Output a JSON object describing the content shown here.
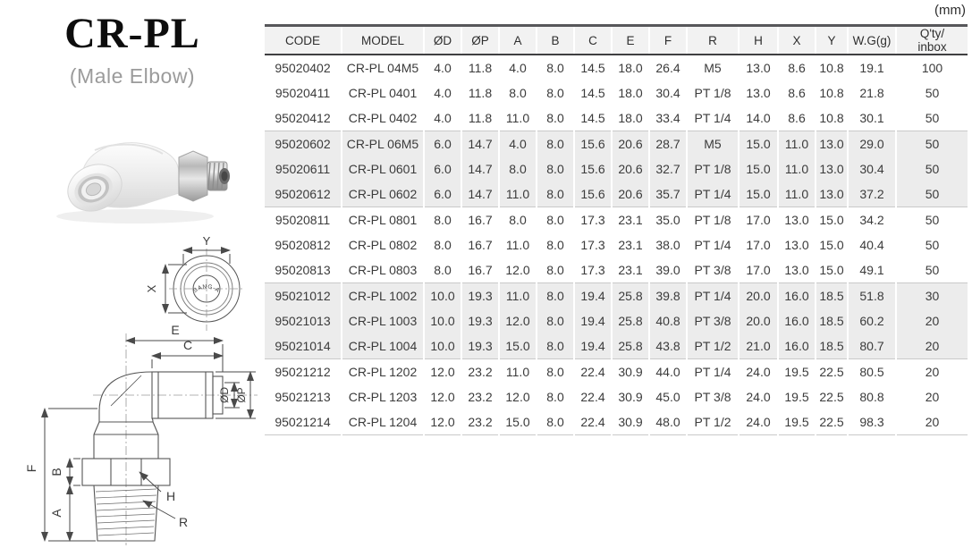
{
  "page": {
    "unit_label": "(mm)"
  },
  "product": {
    "title": "CR-PL",
    "subtitle": "(Male Elbow)"
  },
  "table": {
    "columns": [
      "CODE",
      "MODEL",
      "ØD",
      "ØP",
      "A",
      "B",
      "C",
      "E",
      "F",
      "R",
      "H",
      "X",
      "Y",
      "W.G(g)",
      "Q'ty/\ninbox"
    ],
    "rows": [
      [
        "95020402",
        "CR-PL 04M5",
        "4.0",
        "11.8",
        "4.0",
        "8.0",
        "14.5",
        "18.0",
        "26.4",
        "M5",
        "13.0",
        "8.6",
        "10.8",
        "19.1",
        "100"
      ],
      [
        "95020411",
        "CR-PL 0401",
        "4.0",
        "11.8",
        "8.0",
        "8.0",
        "14.5",
        "18.0",
        "30.4",
        "PT 1/8",
        "13.0",
        "8.6",
        "10.8",
        "21.8",
        "50"
      ],
      [
        "95020412",
        "CR-PL 0402",
        "4.0",
        "11.8",
        "11.0",
        "8.0",
        "14.5",
        "18.0",
        "33.4",
        "PT 1/4",
        "14.0",
        "8.6",
        "10.8",
        "30.1",
        "50"
      ],
      [
        "95020602",
        "CR-PL 06M5",
        "6.0",
        "14.7",
        "4.0",
        "8.0",
        "15.6",
        "20.6",
        "28.7",
        "M5",
        "15.0",
        "11.0",
        "13.0",
        "29.0",
        "50"
      ],
      [
        "95020611",
        "CR-PL 0601",
        "6.0",
        "14.7",
        "8.0",
        "8.0",
        "15.6",
        "20.6",
        "32.7",
        "PT 1/8",
        "15.0",
        "11.0",
        "13.0",
        "30.4",
        "50"
      ],
      [
        "95020612",
        "CR-PL 0602",
        "6.0",
        "14.7",
        "11.0",
        "8.0",
        "15.6",
        "20.6",
        "35.7",
        "PT 1/4",
        "15.0",
        "11.0",
        "13.0",
        "37.2",
        "50"
      ],
      [
        "95020811",
        "CR-PL 0801",
        "8.0",
        "16.7",
        "8.0",
        "8.0",
        "17.3",
        "23.1",
        "35.0",
        "PT 1/8",
        "17.0",
        "13.0",
        "15.0",
        "34.2",
        "50"
      ],
      [
        "95020812",
        "CR-PL 0802",
        "8.0",
        "16.7",
        "11.0",
        "8.0",
        "17.3",
        "23.1",
        "38.0",
        "PT 1/4",
        "17.0",
        "13.0",
        "15.0",
        "40.4",
        "50"
      ],
      [
        "95020813",
        "CR-PL 0803",
        "8.0",
        "16.7",
        "12.0",
        "8.0",
        "17.3",
        "23.1",
        "39.0",
        "PT 3/8",
        "17.0",
        "13.0",
        "15.0",
        "49.1",
        "50"
      ],
      [
        "95021012",
        "CR-PL 1002",
        "10.0",
        "19.3",
        "11.0",
        "8.0",
        "19.4",
        "25.8",
        "39.8",
        "PT 1/4",
        "20.0",
        "16.0",
        "18.5",
        "51.8",
        "30"
      ],
      [
        "95021013",
        "CR-PL 1003",
        "10.0",
        "19.3",
        "12.0",
        "8.0",
        "19.4",
        "25.8",
        "40.8",
        "PT 3/8",
        "20.0",
        "16.0",
        "18.5",
        "60.2",
        "20"
      ],
      [
        "95021014",
        "CR-PL 1004",
        "10.0",
        "19.3",
        "15.0",
        "8.0",
        "19.4",
        "25.8",
        "43.8",
        "PT 1/2",
        "21.0",
        "16.0",
        "18.5",
        "80.7",
        "20"
      ],
      [
        "95021212",
        "CR-PL 1202",
        "12.0",
        "23.2",
        "11.0",
        "8.0",
        "22.4",
        "30.9",
        "44.0",
        "PT 1/4",
        "24.0",
        "19.5",
        "22.5",
        "80.5",
        "20"
      ],
      [
        "95021213",
        "CR-PL 1203",
        "12.0",
        "23.2",
        "12.0",
        "8.0",
        "22.4",
        "30.9",
        "45.0",
        "PT 3/8",
        "24.0",
        "19.5",
        "22.5",
        "80.8",
        "20"
      ],
      [
        "95021214",
        "CR-PL 1204",
        "12.0",
        "23.2",
        "15.0",
        "8.0",
        "22.4",
        "30.9",
        "48.0",
        "PT 1/2",
        "24.0",
        "19.5",
        "22.5",
        "98.3",
        "20"
      ]
    ]
  },
  "diagram": {
    "labels": {
      "y": "Y",
      "x": "X",
      "e": "E",
      "c": "C",
      "od": "ØD",
      "op": "ØP",
      "f": "F",
      "b": "B",
      "a": "A",
      "h": "H",
      "r": "R"
    },
    "brand_mark": "SANG-A"
  },
  "colors": {
    "header_bg": "#f2f2f2",
    "shaded_row_bg": "#ececec",
    "table_top_border": "#57575a",
    "header_underline": "#3f3f41",
    "subtitle_gray": "#9b9b9b"
  }
}
